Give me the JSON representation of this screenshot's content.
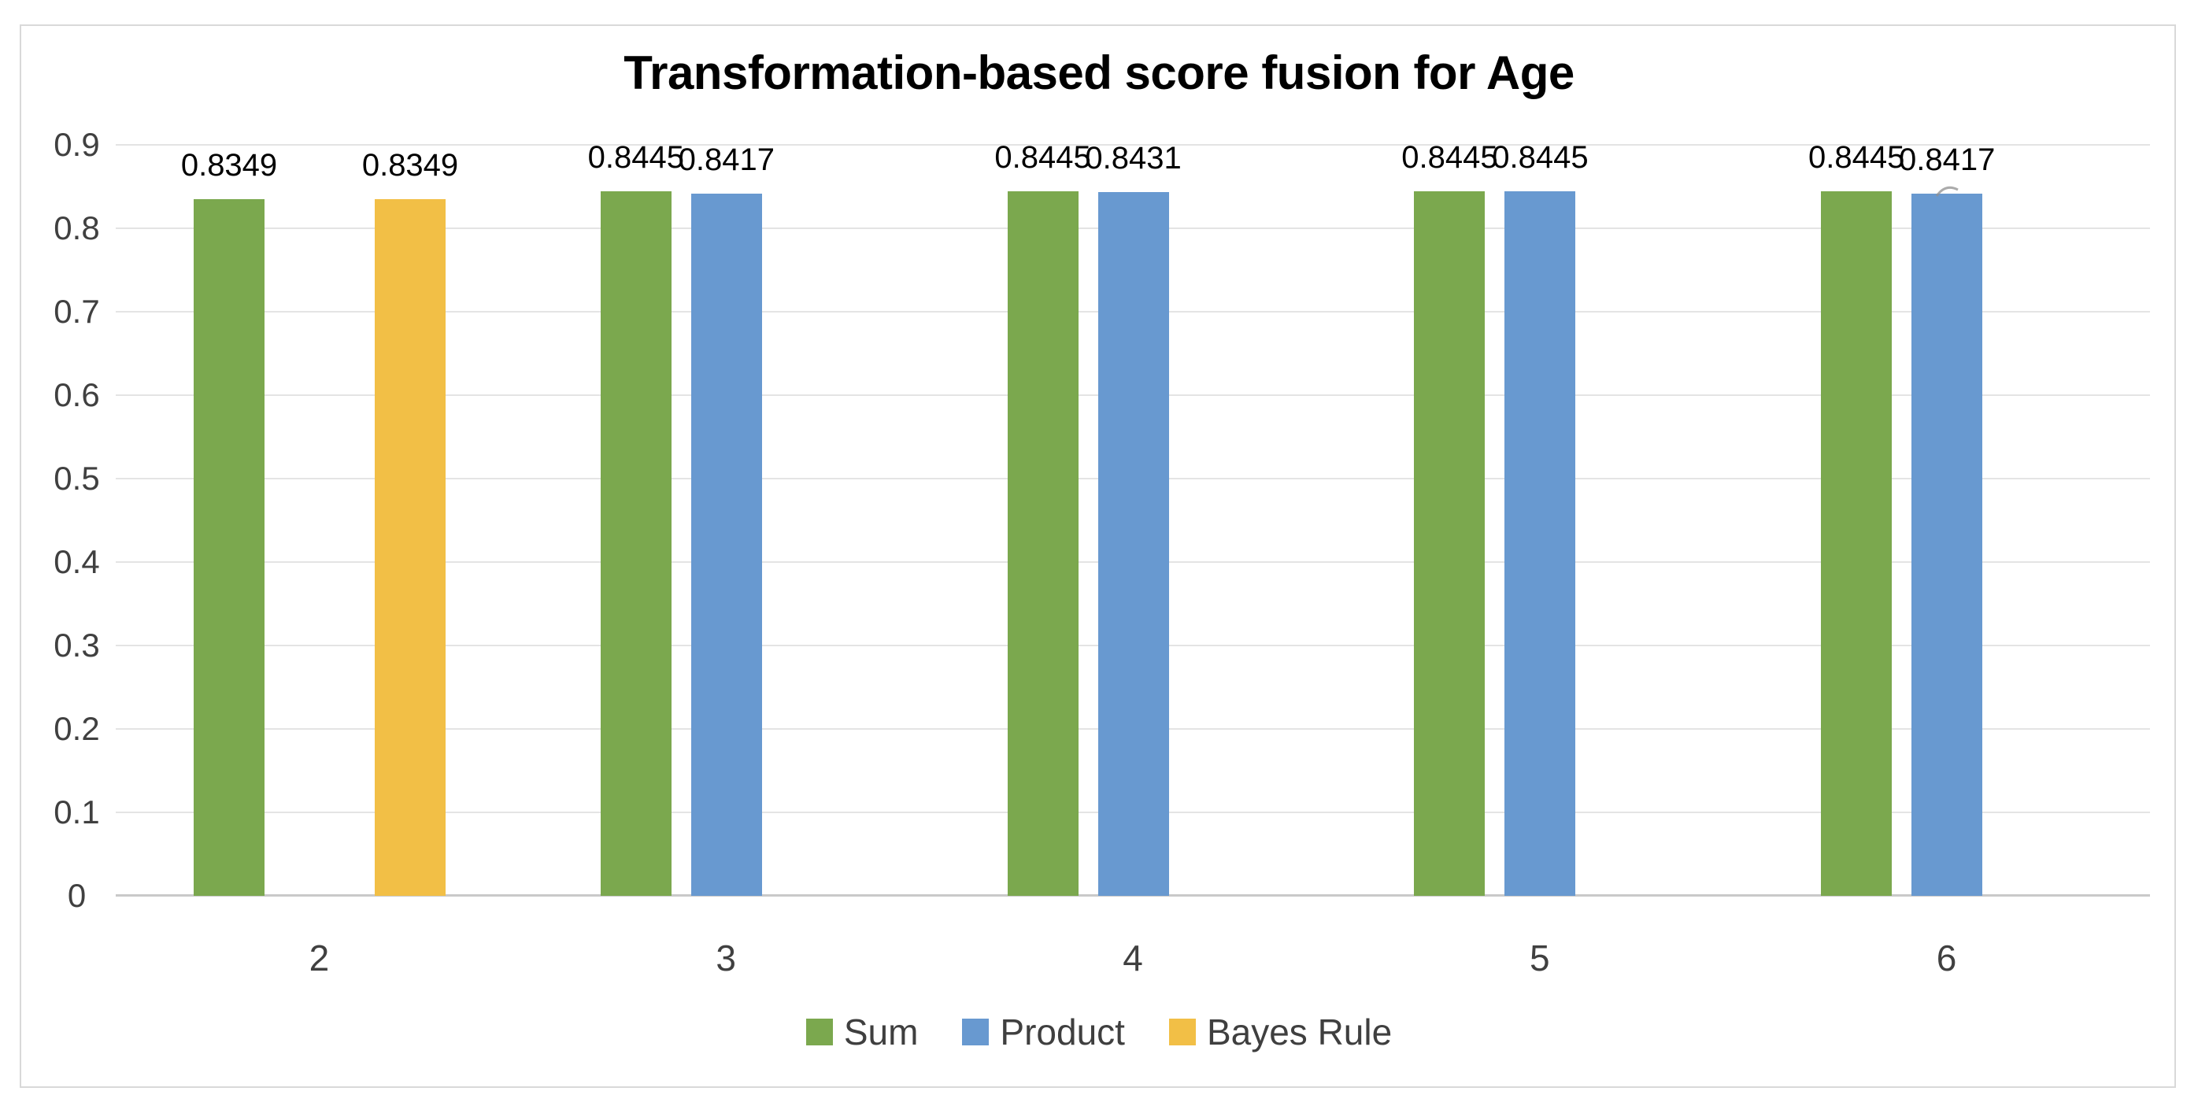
{
  "chart_data": {
    "type": "bar",
    "title": "Transformation-based score fusion for Age",
    "categories": [
      "2",
      "3",
      "4",
      "5",
      "6"
    ],
    "series": [
      {
        "name": "Sum",
        "color": "#7BA84E",
        "values": [
          0.8349,
          0.8445,
          0.8445,
          0.8445,
          0.8445
        ],
        "labels": [
          "0.8349",
          "0.8445",
          "0.8445",
          "0.8445",
          "0.8445"
        ]
      },
      {
        "name": "Product",
        "color": "#6899D0",
        "values": [
          null,
          0.8417,
          0.8431,
          0.8445,
          0.8417
        ],
        "labels": [
          null,
          "0.8417",
          "0.8431",
          "0.8445",
          "0.8417"
        ]
      },
      {
        "name": "Bayes Rule",
        "color": "#F2BF46",
        "values": [
          0.8349,
          null,
          null,
          null,
          null
        ],
        "labels": [
          "0.8349",
          null,
          null,
          null,
          null
        ]
      }
    ],
    "ylim": [
      0,
      0.9
    ],
    "yticks": [
      "0",
      "0.1",
      "0.2",
      "0.3",
      "0.4",
      "0.5",
      "0.6",
      "0.7",
      "0.8",
      "0.9"
    ],
    "xlabel": "",
    "ylabel": "",
    "grid": "horizontal",
    "legend_position": "bottom",
    "data_labels": true,
    "colors": {
      "grid": "#E4E4E4",
      "axis_line": "#C9C9C9",
      "frame_border": "#D9D9D9",
      "axis_text": "#404040",
      "legend_text": "#3F3F3F",
      "label_text": "#000000",
      "background": "#FFFFFF"
    }
  }
}
